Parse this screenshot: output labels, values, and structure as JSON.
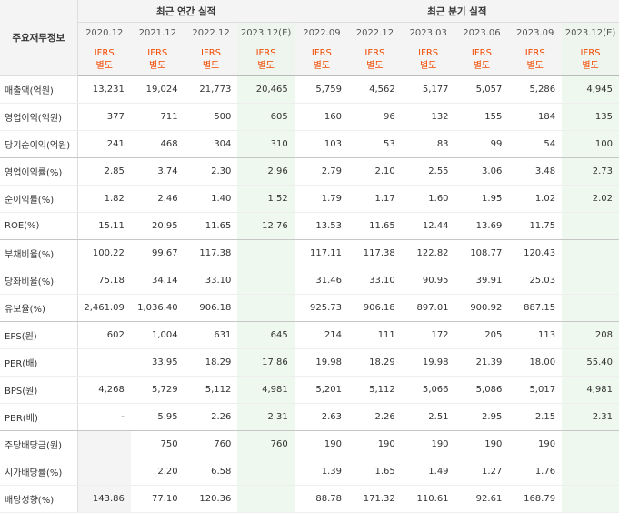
{
  "header": {
    "corner": "주요재무정보",
    "annual_title": "최근 연간 실적",
    "quarter_title": "최근 분기 실적",
    "annual_periods": [
      "2020.12",
      "2021.12",
      "2022.12",
      "2023.12(E)"
    ],
    "quarter_periods": [
      "2022.09",
      "2022.12",
      "2023.03",
      "2023.06",
      "2023.09",
      "2023.12(E)"
    ],
    "basis_top": "IFRS",
    "basis_bottom": "별도"
  },
  "rows": [
    {
      "label": "매출액(억원)",
      "values": [
        "13,231",
        "19,024",
        "21,773",
        "20,465",
        "5,759",
        "4,562",
        "5,177",
        "5,057",
        "5,286",
        "4,945"
      ]
    },
    {
      "label": "영업이익(억원)",
      "values": [
        "377",
        "711",
        "500",
        "605",
        "160",
        "96",
        "132",
        "155",
        "184",
        "135"
      ]
    },
    {
      "label": "당기순이익(억원)",
      "values": [
        "241",
        "468",
        "304",
        "310",
        "103",
        "53",
        "83",
        "99",
        "54",
        "100"
      ]
    },
    {
      "label": "영업이익률(%)",
      "values": [
        "2.85",
        "3.74",
        "2.30",
        "2.96",
        "2.79",
        "2.10",
        "2.55",
        "3.06",
        "3.48",
        "2.73"
      ]
    },
    {
      "label": "순이익률(%)",
      "values": [
        "1.82",
        "2.46",
        "1.40",
        "1.52",
        "1.79",
        "1.17",
        "1.60",
        "1.95",
        "1.02",
        "2.02"
      ]
    },
    {
      "label": "ROE(%)",
      "values": [
        "15.11",
        "20.95",
        "11.65",
        "12.76",
        "13.53",
        "11.65",
        "12.44",
        "13.69",
        "11.75",
        ""
      ]
    },
    {
      "label": "부채비율(%)",
      "values": [
        "100.22",
        "99.67",
        "117.38",
        "",
        "117.11",
        "117.38",
        "122.82",
        "108.77",
        "120.43",
        ""
      ]
    },
    {
      "label": "당좌비율(%)",
      "values": [
        "75.18",
        "34.14",
        "33.10",
        "",
        "31.46",
        "33.10",
        "90.95",
        "39.91",
        "25.03",
        ""
      ]
    },
    {
      "label": "유보율(%)",
      "values": [
        "2,461.09",
        "1,036.40",
        "906.18",
        "",
        "925.73",
        "906.18",
        "897.01",
        "900.92",
        "887.15",
        ""
      ]
    },
    {
      "label": "EPS(원)",
      "values": [
        "602",
        "1,004",
        "631",
        "645",
        "214",
        "111",
        "172",
        "205",
        "113",
        "208"
      ]
    },
    {
      "label": "PER(배)",
      "values": [
        "",
        "33.95",
        "18.29",
        "17.86",
        "19.98",
        "18.29",
        "19.98",
        "21.39",
        "18.00",
        "55.40"
      ]
    },
    {
      "label": "BPS(원)",
      "values": [
        "4,268",
        "5,729",
        "5,112",
        "4,981",
        "5,201",
        "5,112",
        "5,066",
        "5,086",
        "5,017",
        "4,981"
      ]
    },
    {
      "label": "PBR(배)",
      "values": [
        "-",
        "5.95",
        "2.26",
        "2.31",
        "2.63",
        "2.26",
        "2.51",
        "2.95",
        "2.15",
        "2.31"
      ]
    },
    {
      "label": "주당배당금(원)",
      "values": [
        "",
        "750",
        "760",
        "760",
        "190",
        "190",
        "190",
        "190",
        "190",
        ""
      ]
    },
    {
      "label": "시가배당률(%)",
      "values": [
        "",
        "2.20",
        "6.58",
        "",
        "1.39",
        "1.65",
        "1.49",
        "1.27",
        "1.76",
        ""
      ]
    },
    {
      "label": "배당성향(%)",
      "values": [
        "143.86",
        "77.10",
        "120.36",
        "",
        "88.78",
        "171.32",
        "110.61",
        "92.61",
        "168.79",
        ""
      ]
    }
  ]
}
